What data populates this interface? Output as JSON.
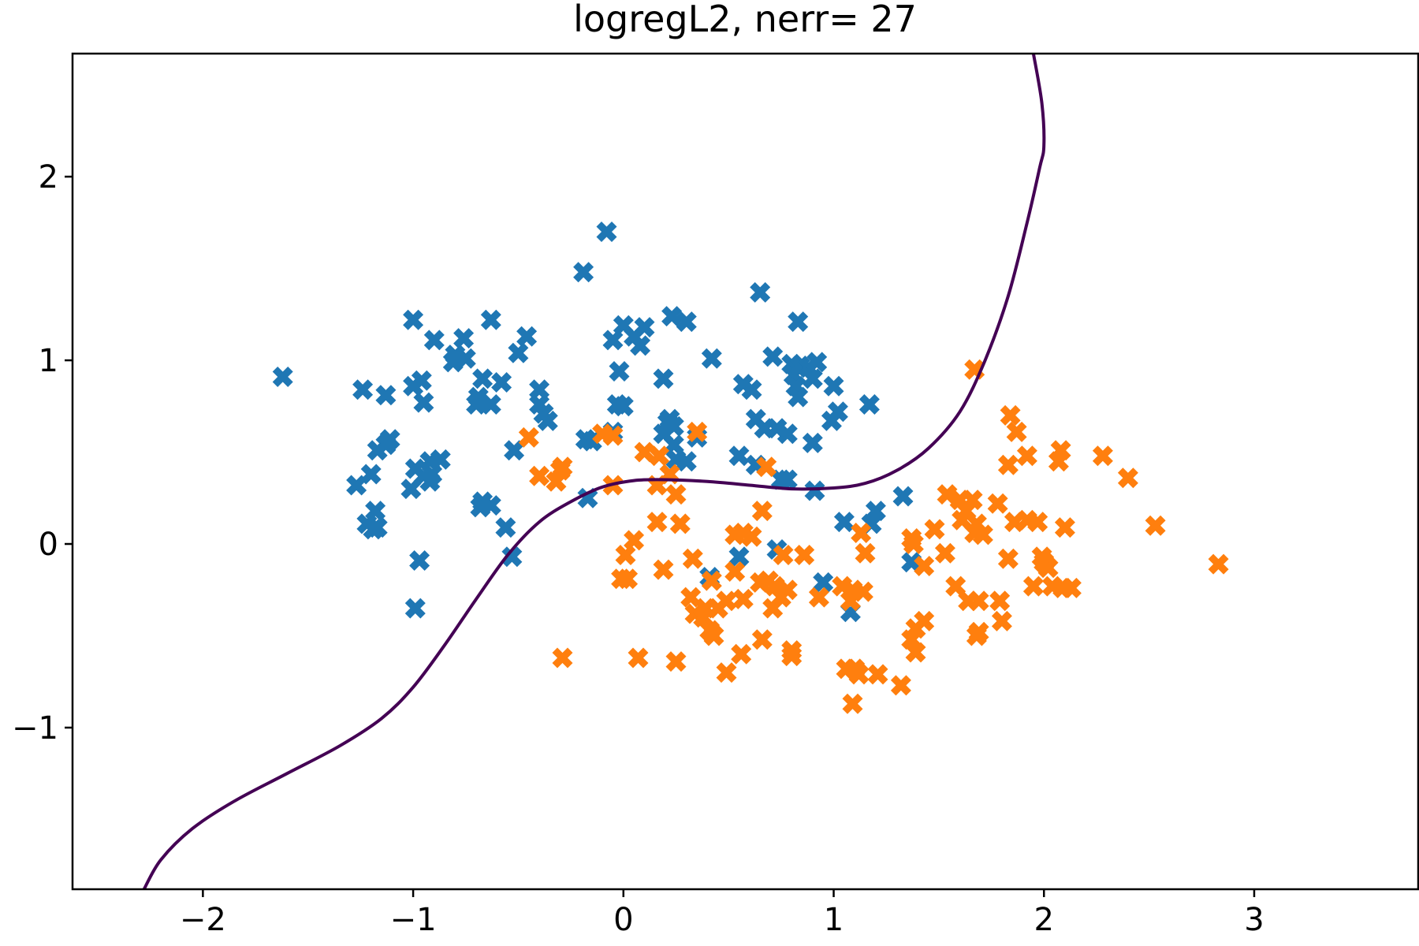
{
  "chart_data": {
    "type": "scatter",
    "title": "logregL2, nerr= 27",
    "xlabel": "",
    "ylabel": "",
    "xlim": [
      -2.62,
      3.78
    ],
    "ylim": [
      -1.88,
      2.67
    ],
    "xticks": [
      -2,
      -1,
      0,
      1,
      2,
      3
    ],
    "yticks": [
      -1,
      0,
      1,
      2
    ],
    "grid": false,
    "legend": "none",
    "marker": "X",
    "colors": {
      "class0": "#1f77b4",
      "class1": "#ff7f0e",
      "boundary": "#440154"
    },
    "series": [
      {
        "points": [
          [
            -1.62,
            0.91
          ],
          [
            -0.08,
            1.7
          ],
          [
            -0.19,
            1.48
          ],
          [
            -1.0,
            1.22
          ],
          [
            -0.63,
            1.22
          ],
          [
            0.65,
            1.37
          ],
          [
            0.83,
            1.21
          ],
          [
            0.23,
            1.24
          ],
          [
            0.3,
            1.21
          ],
          [
            0.0,
            1.19
          ],
          [
            0.1,
            1.18
          ],
          [
            0.05,
            1.13
          ],
          [
            0.08,
            1.08
          ],
          [
            -0.05,
            1.11
          ],
          [
            -0.9,
            1.11
          ],
          [
            -0.76,
            1.12
          ],
          [
            -0.8,
            1.03
          ],
          [
            -0.75,
            1.01
          ],
          [
            -0.46,
            1.13
          ],
          [
            -0.5,
            1.04
          ],
          [
            -0.81,
            0.99
          ],
          [
            -1.24,
            0.84
          ],
          [
            -1.13,
            0.81
          ],
          [
            -0.96,
            0.89
          ],
          [
            -1.0,
            0.86
          ],
          [
            -0.95,
            0.77
          ],
          [
            -0.67,
            0.9
          ],
          [
            -0.58,
            0.88
          ],
          [
            -0.69,
            0.8
          ],
          [
            -0.7,
            0.76
          ],
          [
            -0.63,
            0.76
          ],
          [
            -0.4,
            0.84
          ],
          [
            -0.4,
            0.76
          ],
          [
            -0.38,
            0.71
          ],
          [
            -0.36,
            0.67
          ],
          [
            -0.02,
            0.94
          ],
          [
            -0.03,
            0.76
          ],
          [
            0.0,
            0.75
          ],
          [
            0.19,
            0.9
          ],
          [
            0.42,
            1.01
          ],
          [
            0.57,
            0.87
          ],
          [
            0.61,
            0.84
          ],
          [
            0.71,
            1.02
          ],
          [
            0.8,
            0.98
          ],
          [
            0.81,
            0.92
          ],
          [
            0.84,
            0.97
          ],
          [
            0.88,
            0.96
          ],
          [
            0.92,
            0.99
          ],
          [
            0.9,
            0.9
          ],
          [
            0.82,
            0.86
          ],
          [
            0.83,
            0.8
          ],
          [
            1.0,
            0.86
          ],
          [
            1.02,
            0.72
          ],
          [
            1.17,
            0.76
          ],
          [
            0.99,
            0.67
          ],
          [
            0.63,
            0.68
          ],
          [
            0.67,
            0.63
          ],
          [
            0.73,
            0.63
          ],
          [
            0.78,
            0.6
          ],
          [
            0.9,
            0.55
          ],
          [
            0.21,
            0.66
          ],
          [
            0.22,
            0.68
          ],
          [
            0.24,
            0.64
          ],
          [
            0.19,
            0.6
          ],
          [
            0.24,
            0.54
          ],
          [
            0.35,
            0.58
          ],
          [
            -0.18,
            0.57
          ],
          [
            -0.15,
            0.56
          ],
          [
            -0.05,
            0.61
          ],
          [
            -0.52,
            0.51
          ],
          [
            -1.13,
            0.54
          ],
          [
            -1.11,
            0.57
          ],
          [
            -1.17,
            0.51
          ],
          [
            -0.92,
            0.45
          ],
          [
            -0.87,
            0.46
          ],
          [
            -0.99,
            0.41
          ],
          [
            -0.95,
            0.37
          ],
          [
            -0.91,
            0.38
          ],
          [
            -1.01,
            0.3
          ],
          [
            -0.92,
            0.34
          ],
          [
            -1.2,
            0.38
          ],
          [
            -1.27,
            0.32
          ],
          [
            -1.22,
            0.11
          ],
          [
            -1.19,
            0.08
          ],
          [
            -1.17,
            0.09
          ],
          [
            -1.18,
            0.18
          ],
          [
            -0.68,
            0.2
          ],
          [
            -0.67,
            0.23
          ],
          [
            -0.63,
            0.21
          ],
          [
            -0.56,
            0.09
          ],
          [
            -0.53,
            -0.07
          ],
          [
            -0.97,
            -0.09
          ],
          [
            -0.99,
            -0.35
          ],
          [
            -0.17,
            0.25
          ],
          [
            0.25,
            0.46
          ],
          [
            0.3,
            0.45
          ],
          [
            0.55,
            0.48
          ],
          [
            0.63,
            0.43
          ],
          [
            0.75,
            0.35
          ],
          [
            0.78,
            0.35
          ],
          [
            0.91,
            0.29
          ],
          [
            1.05,
            0.12
          ],
          [
            1.18,
            0.11
          ],
          [
            1.2,
            0.18
          ],
          [
            1.33,
            0.26
          ],
          [
            1.37,
            -0.1
          ],
          [
            1.08,
            -0.37
          ],
          [
            0.95,
            -0.21
          ],
          [
            0.73,
            -0.03
          ],
          [
            0.55,
            -0.07
          ],
          [
            0.41,
            -0.18
          ]
        ]
      },
      {
        "points": [
          [
            1.67,
            0.95
          ],
          [
            1.84,
            0.7
          ],
          [
            1.87,
            0.61
          ],
          [
            1.83,
            0.43
          ],
          [
            1.92,
            0.48
          ],
          [
            2.08,
            0.51
          ],
          [
            2.07,
            0.45
          ],
          [
            2.28,
            0.48
          ],
          [
            2.4,
            0.36
          ],
          [
            2.53,
            0.1
          ],
          [
            2.83,
            -0.11
          ],
          [
            -0.45,
            0.58
          ],
          [
            -0.4,
            0.37
          ],
          [
            -0.32,
            0.34
          ],
          [
            -0.3,
            0.4
          ],
          [
            -0.29,
            0.42
          ],
          [
            -0.1,
            0.6
          ],
          [
            -0.05,
            0.59
          ],
          [
            -0.05,
            0.32
          ],
          [
            0.1,
            0.5
          ],
          [
            0.17,
            0.48
          ],
          [
            0.22,
            0.38
          ],
          [
            0.16,
            0.32
          ],
          [
            0.25,
            0.27
          ],
          [
            0.35,
            0.61
          ],
          [
            0.68,
            0.42
          ],
          [
            0.16,
            0.12
          ],
          [
            0.27,
            0.11
          ],
          [
            0.05,
            0.02
          ],
          [
            0.01,
            -0.06
          ],
          [
            0.02,
            -0.19
          ],
          [
            0.19,
            -0.14
          ],
          [
            0.33,
            -0.08
          ],
          [
            0.66,
            0.18
          ],
          [
            0.53,
            0.05
          ],
          [
            0.57,
            0.06
          ],
          [
            0.61,
            0.04
          ],
          [
            0.76,
            -0.06
          ],
          [
            0.86,
            -0.06
          ],
          [
            1.13,
            0.06
          ],
          [
            1.15,
            -0.05
          ],
          [
            1.38,
            0.0
          ],
          [
            1.37,
            0.03
          ],
          [
            1.48,
            0.08
          ],
          [
            1.53,
            -0.05
          ],
          [
            1.43,
            -0.12
          ],
          [
            1.54,
            0.27
          ],
          [
            1.6,
            0.24
          ],
          [
            1.63,
            0.18
          ],
          [
            1.61,
            0.13
          ],
          [
            1.66,
            0.24
          ],
          [
            1.67,
            0.06
          ],
          [
            1.68,
            0.11
          ],
          [
            1.71,
            0.05
          ],
          [
            1.78,
            0.22
          ],
          [
            1.86,
            0.12
          ],
          [
            1.92,
            0.13
          ],
          [
            1.97,
            0.12
          ],
          [
            2.1,
            0.09
          ],
          [
            1.83,
            -0.08
          ],
          [
            1.99,
            -0.07
          ],
          [
            2.0,
            -0.1
          ],
          [
            2.02,
            -0.13
          ],
          [
            1.95,
            -0.23
          ],
          [
            2.04,
            -0.23
          ],
          [
            2.09,
            -0.24
          ],
          [
            2.13,
            -0.24
          ],
          [
            1.58,
            -0.23
          ],
          [
            1.64,
            -0.31
          ],
          [
            1.69,
            -0.31
          ],
          [
            1.79,
            -0.31
          ],
          [
            1.8,
            -0.42
          ],
          [
            1.69,
            -0.48
          ],
          [
            1.68,
            -0.5
          ],
          [
            1.43,
            -0.42
          ],
          [
            1.39,
            -0.46
          ],
          [
            1.37,
            -0.52
          ],
          [
            1.39,
            -0.59
          ],
          [
            1.32,
            -0.77
          ],
          [
            1.06,
            -0.68
          ],
          [
            1.1,
            -0.68
          ],
          [
            1.12,
            -0.71
          ],
          [
            1.21,
            -0.71
          ],
          [
            1.09,
            -0.87
          ],
          [
            1.08,
            -0.31
          ],
          [
            1.09,
            -0.25
          ],
          [
            1.14,
            -0.26
          ],
          [
            1.04,
            -0.23
          ],
          [
            0.93,
            -0.29
          ],
          [
            0.78,
            -0.25
          ],
          [
            0.75,
            -0.29
          ],
          [
            0.72,
            -0.23
          ],
          [
            0.69,
            -0.2
          ],
          [
            0.65,
            -0.21
          ],
          [
            0.53,
            -0.15
          ],
          [
            0.57,
            -0.3
          ],
          [
            0.49,
            -0.31
          ],
          [
            0.45,
            -0.35
          ],
          [
            0.39,
            -0.35
          ],
          [
            0.32,
            -0.29
          ],
          [
            0.34,
            -0.38
          ],
          [
            0.38,
            -0.4
          ],
          [
            0.41,
            -0.47
          ],
          [
            0.43,
            -0.5
          ],
          [
            0.66,
            -0.52
          ],
          [
            0.56,
            -0.6
          ],
          [
            0.49,
            -0.7
          ],
          [
            0.8,
            -0.58
          ],
          [
            0.8,
            -0.61
          ],
          [
            0.25,
            -0.64
          ],
          [
            0.07,
            -0.62
          ],
          [
            -0.29,
            -0.62
          ],
          [
            -0.01,
            -0.19
          ],
          [
            0.71,
            -0.35
          ],
          [
            0.42,
            -0.2
          ]
        ]
      }
    ],
    "boundary": [
      [
        -2.28,
        -1.88
      ],
      [
        -2.2,
        -1.72
      ],
      [
        -2.05,
        -1.55
      ],
      [
        -1.85,
        -1.4
      ],
      [
        -1.6,
        -1.25
      ],
      [
        -1.35,
        -1.1
      ],
      [
        -1.15,
        -0.95
      ],
      [
        -1.0,
        -0.78
      ],
      [
        -0.85,
        -0.55
      ],
      [
        -0.7,
        -0.3
      ],
      [
        -0.55,
        -0.06
      ],
      [
        -0.4,
        0.12
      ],
      [
        -0.25,
        0.23
      ],
      [
        -0.1,
        0.31
      ],
      [
        0.05,
        0.345
      ],
      [
        0.2,
        0.35
      ],
      [
        0.4,
        0.34
      ],
      [
        0.6,
        0.32
      ],
      [
        0.8,
        0.3
      ],
      [
        1.0,
        0.305
      ],
      [
        1.15,
        0.33
      ],
      [
        1.3,
        0.4
      ],
      [
        1.45,
        0.52
      ],
      [
        1.6,
        0.72
      ],
      [
        1.72,
        1.0
      ],
      [
        1.83,
        1.35
      ],
      [
        1.92,
        1.75
      ],
      [
        1.98,
        2.05
      ],
      [
        2.0,
        2.17
      ],
      [
        1.99,
        2.4
      ],
      [
        1.95,
        2.67
      ]
    ]
  }
}
